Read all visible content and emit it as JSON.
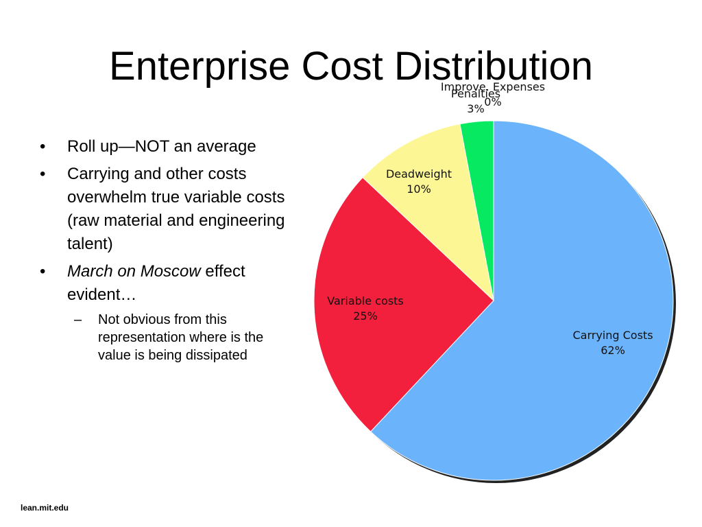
{
  "slide": {
    "title": "Enterprise Cost Distribution",
    "footer": "lean.mit.edu",
    "bullets": [
      {
        "text": "Roll up—NOT an average"
      },
      {
        "text": "Carrying and other costs overwhelm true variable costs (raw material and engineering talent)"
      },
      {
        "italic": "March on Moscow",
        "text": " effect evident…"
      }
    ],
    "sub_bullet": "Not obvious from this representation where is the value is being dissipated",
    "bullet_char": "•",
    "dash_char": "–"
  },
  "chart_data": {
    "type": "pie",
    "slices": [
      {
        "label": "Carrying Costs",
        "value_label": "62%",
        "value": 62,
        "color": "#6bb4fb"
      },
      {
        "label": "Variable costs",
        "value_label": "25%",
        "value": 25,
        "color": "#f2203d"
      },
      {
        "label": "Deadweight",
        "value_label": "10%",
        "value": 10,
        "color": "#fcf794"
      },
      {
        "label": "Penalties",
        "value_label": "3%",
        "value": 3,
        "color": "#08e962"
      },
      {
        "label": "Improve. Expenses",
        "value_label": "0%",
        "value": 0,
        "color": "#ffcc66"
      }
    ]
  }
}
